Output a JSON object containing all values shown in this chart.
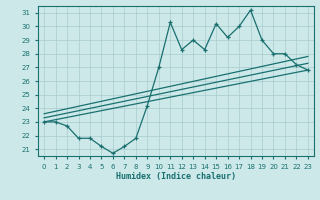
{
  "xlabel": "Humidex (Indice chaleur)",
  "ylabel": "",
  "bg_color": "#cce8e8",
  "line_color": "#1a7070",
  "grid_color": "#a8cccc",
  "xlim": [
    -0.5,
    23.5
  ],
  "ylim": [
    20.5,
    31.5
  ],
  "xticks": [
    0,
    1,
    2,
    3,
    4,
    5,
    6,
    7,
    8,
    9,
    10,
    11,
    12,
    13,
    14,
    15,
    16,
    17,
    18,
    19,
    20,
    21,
    22,
    23
  ],
  "yticks": [
    21,
    22,
    23,
    24,
    25,
    26,
    27,
    28,
    29,
    30,
    31
  ],
  "jagged_x": [
    0,
    1,
    2,
    3,
    4,
    5,
    6,
    7,
    8,
    9,
    10,
    11,
    12,
    13,
    14,
    15,
    16,
    17,
    18,
    19,
    20,
    21,
    22,
    23
  ],
  "jagged_y": [
    23,
    23,
    22.7,
    21.8,
    21.8,
    21.2,
    20.7,
    21.2,
    21.8,
    24.2,
    27,
    30.3,
    28.3,
    29,
    28.3,
    30.2,
    29.2,
    30,
    31.2,
    29.0,
    28.0,
    28.0,
    27.2,
    26.8
  ],
  "line1_x": [
    0,
    23
  ],
  "line1_y": [
    23.0,
    26.8
  ],
  "line2_x": [
    0,
    23
  ],
  "line2_y": [
    23.3,
    27.3
  ],
  "line3_x": [
    0,
    23
  ],
  "line3_y": [
    23.6,
    27.8
  ]
}
